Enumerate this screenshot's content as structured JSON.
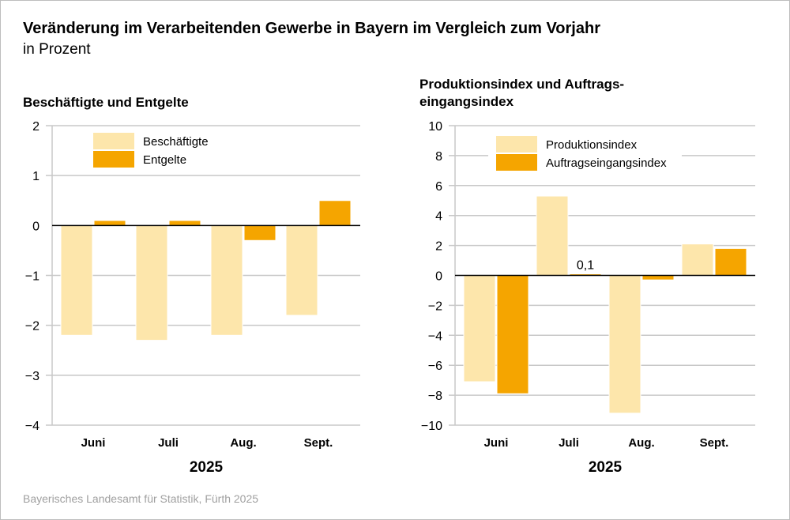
{
  "title": "Veränderung im Verarbeitenden Gewerbe in Bayern im Vergleich zum Vorjahr",
  "subtitle": "in Prozent",
  "source": "Bayerisches Landesamt für Statistik, Fürth 2025",
  "colors": {
    "light": "#fde6ab",
    "dark": "#f5a500"
  },
  "chart_data": [
    {
      "type": "bar",
      "title": "Beschäftigte und Entgelte",
      "categories": [
        "Juni",
        "Juli",
        "Aug.",
        "Sept."
      ],
      "xlabel": "2025",
      "ylim": [
        -4,
        2
      ],
      "yticks": [
        2,
        1,
        0,
        -1,
        -2,
        -3,
        -4
      ],
      "grid": true,
      "legend": "top-left",
      "series": [
        {
          "name": "Beschäftigte",
          "values": [
            -2.2,
            -2.3,
            -2.2,
            -1.8
          ],
          "color": "#fde6ab"
        },
        {
          "name": "Entgelte",
          "values": [
            0.1,
            0.1,
            -0.3,
            0.5
          ],
          "color": "#f5a500"
        }
      ]
    },
    {
      "type": "bar",
      "title": "Produktionsindex und Auftrags-\neingangsindex",
      "title_lines": [
        "Produktionsindex und Auftrags-",
        "eingangsindex"
      ],
      "categories": [
        "Juni",
        "Juli",
        "Aug.",
        "Sept."
      ],
      "xlabel": "2025",
      "ylim": [
        -10,
        10
      ],
      "yticks": [
        10,
        8,
        6,
        4,
        2,
        0,
        -2,
        -4,
        -6,
        -8,
        -10
      ],
      "grid": true,
      "legend": "top-left",
      "annotations": [
        {
          "category": "Juli",
          "series": "Auftragseingangsindex",
          "text": "0,1"
        }
      ],
      "series": [
        {
          "name": "Produktionsindex",
          "values": [
            -7.1,
            5.3,
            -9.2,
            2.1
          ],
          "color": "#fde6ab"
        },
        {
          "name": "Auftragseingangsindex",
          "values": [
            -7.9,
            0.1,
            -0.3,
            1.8
          ],
          "color": "#f5a500"
        }
      ]
    }
  ]
}
